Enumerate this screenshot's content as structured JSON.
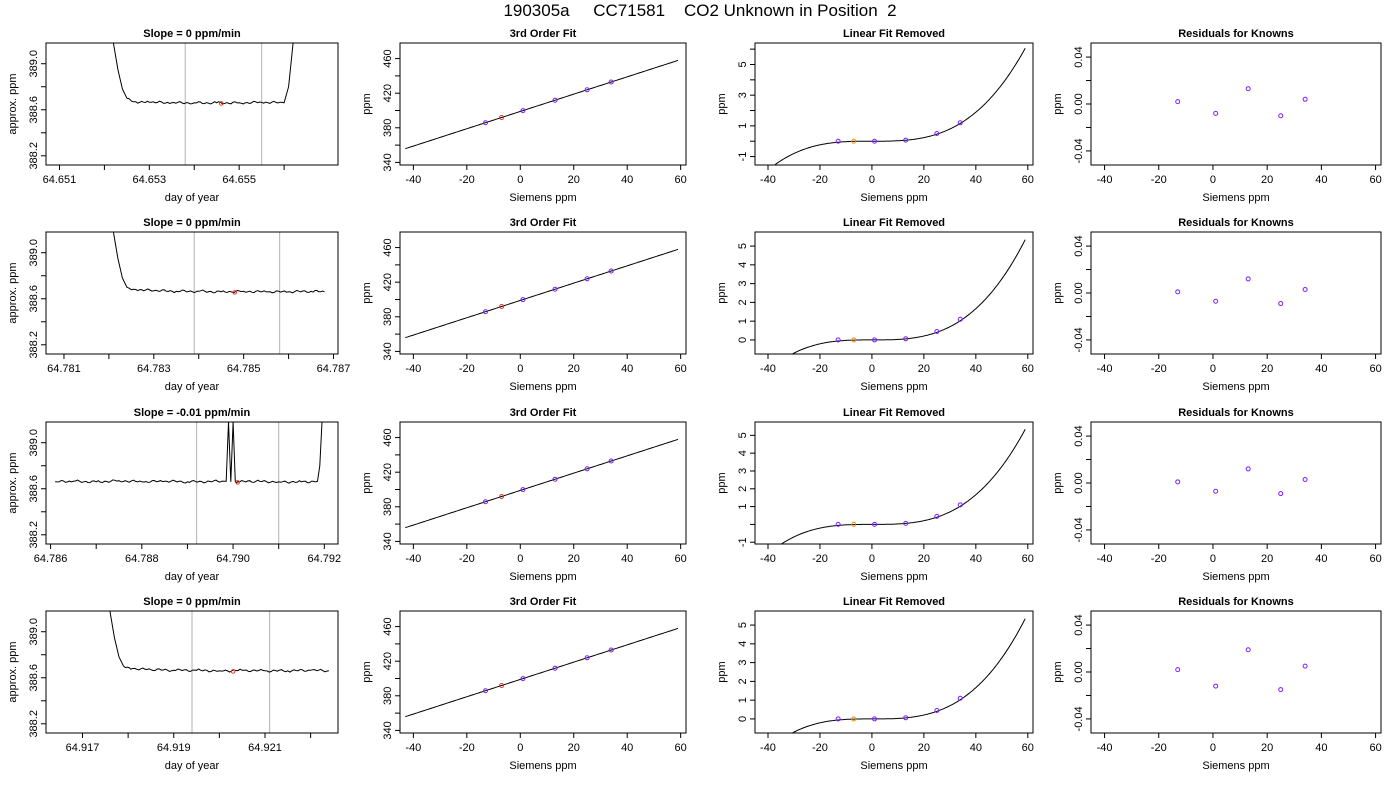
{
  "page": {
    "title": "190305a     CC71581    CO2 Unknown in Position  2"
  },
  "chart_data": [
    {
      "row": 1,
      "type": "line",
      "title": "Slope =  0  ppm/min",
      "xlabel": "day of year",
      "ylabel": "approx. ppm",
      "xlim": [
        64.6507,
        64.6572
      ],
      "ylim": [
        388.12,
        389.18
      ],
      "xticks": [
        64.651,
        64.653,
        64.655
      ],
      "xticks_minor": [
        64.652,
        64.654,
        64.656
      ],
      "yticks": [
        388.2,
        388.6,
        389.0
      ],
      "yticks_minor": [
        388.4,
        388.8
      ],
      "vlines": [
        64.6538,
        64.6555
      ],
      "marker": {
        "x": 64.6546,
        "y": 388.655
      },
      "series": [
        {
          "x": [
            64.6522,
            64.6523,
            64.6524,
            64.6525,
            64.6527,
            64.653,
            64.6535,
            64.654,
            64.6545,
            64.655,
            64.6555,
            64.656,
            64.6561,
            64.6562
          ],
          "y": [
            389.18,
            388.95,
            388.78,
            388.7,
            388.67,
            388.665,
            388.66,
            388.66,
            388.66,
            388.66,
            388.665,
            388.66,
            388.8,
            389.18
          ]
        }
      ]
    },
    {
      "row": 2,
      "type": "line",
      "title": "Slope =  0  ppm/min",
      "xlabel": "day of year",
      "ylabel": "approx. ppm",
      "xlim": [
        64.7806,
        64.7871
      ],
      "ylim": [
        388.12,
        389.18
      ],
      "xticks": [
        64.781,
        64.783,
        64.785,
        64.787
      ],
      "xticks_minor": [
        64.782,
        64.784,
        64.786
      ],
      "yticks": [
        388.2,
        388.6,
        389.0
      ],
      "yticks_minor": [
        388.4,
        388.8
      ],
      "vlines": [
        64.7839,
        64.7858
      ],
      "marker": {
        "x": 64.7848,
        "y": 388.655
      },
      "series": [
        {
          "x": [
            64.7821,
            64.7822,
            64.7823,
            64.7824,
            64.7826,
            64.783,
            64.7835,
            64.784,
            64.7845,
            64.785,
            64.7855,
            64.786,
            64.7865,
            64.7868
          ],
          "y": [
            389.18,
            388.95,
            388.78,
            388.7,
            388.68,
            388.67,
            388.665,
            388.665,
            388.66,
            388.665,
            388.66,
            388.66,
            388.665,
            388.66
          ]
        }
      ]
    },
    {
      "row": 3,
      "type": "line",
      "title": "Slope =  -0.01  ppm/min",
      "xlabel": "day of year",
      "ylabel": "approx. ppm",
      "xlim": [
        64.7859,
        64.7923
      ],
      "ylim": [
        388.12,
        389.18
      ],
      "xticks": [
        64.786,
        64.788,
        64.79,
        64.792
      ],
      "xticks_minor": [
        64.787,
        64.789,
        64.791
      ],
      "yticks": [
        388.2,
        388.6,
        389.0
      ],
      "yticks_minor": [
        388.4,
        388.8
      ],
      "vlines": [
        64.7892,
        64.791
      ],
      "marker": {
        "x": 64.7901,
        "y": 388.655
      },
      "series": [
        {
          "x": [
            64.7861,
            64.7865,
            64.787,
            64.7875,
            64.788,
            64.7885,
            64.789,
            64.78985,
            64.7899,
            64.78995,
            64.79,
            64.79005,
            64.7901,
            64.7905,
            64.791,
            64.7915,
            64.79185,
            64.7919,
            64.79195
          ],
          "y": [
            388.66,
            388.665,
            388.66,
            388.67,
            388.66,
            388.665,
            388.66,
            388.665,
            389.18,
            388.66,
            389.18,
            388.66,
            388.66,
            388.665,
            388.66,
            388.66,
            388.665,
            388.8,
            389.18
          ]
        }
      ]
    },
    {
      "row": 4,
      "type": "line",
      "title": "Slope =  0  ppm/min",
      "xlabel": "day of year",
      "ylabel": "approx. ppm",
      "xlim": [
        64.9162,
        64.9226
      ],
      "ylim": [
        388.12,
        389.18
      ],
      "xticks": [
        64.917,
        64.919,
        64.921
      ],
      "xticks_minor": [
        64.918,
        64.92,
        64.922
      ],
      "yticks": [
        388.2,
        388.6,
        389.0
      ],
      "yticks_minor": [
        388.4,
        388.8
      ],
      "vlines": [
        64.9194,
        64.9211
      ],
      "marker": {
        "x": 64.9203,
        "y": 388.655
      },
      "series": [
        {
          "x": [
            64.9176,
            64.9177,
            64.9178,
            64.9179,
            64.9181,
            64.9185,
            64.919,
            64.9195,
            64.92,
            64.9205,
            64.921,
            64.9215,
            64.922,
            64.9224
          ],
          "y": [
            389.18,
            388.95,
            388.78,
            388.7,
            388.68,
            388.67,
            388.665,
            388.665,
            388.66,
            388.665,
            388.66,
            388.66,
            388.665,
            388.66
          ]
        }
      ]
    },
    {
      "row": 1,
      "type": "scatter",
      "title": "3rd Order Fit",
      "xlabel": "Siemens ppm",
      "ylabel": "ppm",
      "xlim": [
        -45,
        62
      ],
      "ylim": [
        337,
        478
      ],
      "xticks": [
        -40,
        -20,
        0,
        20,
        40,
        60
      ],
      "yticks": [
        340,
        380,
        420,
        460
      ],
      "yticks_minor": [
        360,
        400,
        440
      ],
      "curve": {
        "type": "cubic",
        "coef": [
          398.9,
          1.0,
          0.0,
          0.0
        ],
        "xrange": [
          -43,
          59
        ]
      },
      "knowns": {
        "x": [
          -13,
          1,
          13,
          25,
          34
        ],
        "y": [
          385.9,
          399.9,
          411.9,
          423.9,
          432.9
        ]
      },
      "unknown": {
        "x": -7,
        "y": 391.9
      }
    },
    {
      "row": 2,
      "type": "scatter",
      "title": "3rd Order Fit",
      "xlabel": "Siemens ppm",
      "ylabel": "ppm",
      "xlim": [
        -45,
        62
      ],
      "ylim": [
        337,
        478
      ],
      "xticks": [
        -40,
        -20,
        0,
        20,
        40,
        60
      ],
      "yticks": [
        340,
        380,
        420,
        460
      ],
      "yticks_minor": [
        360,
        400,
        440
      ],
      "curve": {
        "type": "cubic",
        "coef": [
          398.9,
          1.0,
          0.0,
          0.0
        ],
        "xrange": [
          -43,
          59
        ]
      },
      "knowns": {
        "x": [
          -13,
          1,
          13,
          25,
          34
        ],
        "y": [
          385.9,
          399.9,
          411.9,
          423.9,
          432.9
        ]
      },
      "unknown": {
        "x": -7,
        "y": 391.9
      }
    },
    {
      "row": 3,
      "type": "scatter",
      "title": "3rd Order Fit",
      "xlabel": "Siemens ppm",
      "ylabel": "ppm",
      "xlim": [
        -45,
        62
      ],
      "ylim": [
        337,
        478
      ],
      "xticks": [
        -40,
        -20,
        0,
        20,
        40,
        60
      ],
      "yticks": [
        340,
        380,
        420,
        460
      ],
      "yticks_minor": [
        360,
        400,
        440
      ],
      "curve": {
        "type": "cubic",
        "coef": [
          398.9,
          1.0,
          0.0,
          0.0
        ],
        "xrange": [
          -43,
          59
        ]
      },
      "knowns": {
        "x": [
          -13,
          1,
          13,
          25,
          34
        ],
        "y": [
          385.9,
          399.9,
          411.9,
          423.9,
          432.9
        ]
      },
      "unknown": {
        "x": -7,
        "y": 391.9
      }
    },
    {
      "row": 4,
      "type": "scatter",
      "title": "3rd Order Fit",
      "xlabel": "Siemens ppm",
      "ylabel": "ppm",
      "xlim": [
        -45,
        62
      ],
      "ylim": [
        337,
        478
      ],
      "xticks": [
        -40,
        -20,
        0,
        20,
        40,
        60
      ],
      "yticks": [
        340,
        380,
        420,
        460
      ],
      "yticks_minor": [
        360,
        400,
        440
      ],
      "curve": {
        "type": "cubic",
        "coef": [
          398.9,
          1.0,
          0.0,
          0.0
        ],
        "xrange": [
          -43,
          59
        ]
      },
      "knowns": {
        "x": [
          -13,
          1,
          13,
          25,
          34
        ],
        "y": [
          385.9,
          399.9,
          411.9,
          423.9,
          432.9
        ]
      },
      "unknown": {
        "x": -7,
        "y": 391.9
      }
    },
    {
      "row": 1,
      "type": "scatter",
      "title": "Linear Fit Removed",
      "xlabel": "Siemens ppm",
      "ylabel": "ppm",
      "xlim": [
        -45,
        62
      ],
      "ylim": [
        -1.55,
        6.4
      ],
      "xticks": [
        -40,
        -20,
        0,
        20,
        40,
        60
      ],
      "yticks": [
        -1,
        1,
        3,
        5
      ],
      "yticks_minor": [
        0,
        2,
        4,
        6
      ],
      "curve": {
        "type": "cubic",
        "coef": [
          0.0,
          0.0,
          0.0,
          2.95e-05
        ],
        "xrange": [
          -43,
          59
        ]
      },
      "knowns": {
        "x": [
          -13,
          1,
          13,
          25,
          34
        ],
        "y": [
          0.0,
          0.0,
          0.07,
          0.5,
          1.2
        ]
      },
      "unknown": {
        "x": -7,
        "y": 0.0
      }
    },
    {
      "row": 2,
      "type": "scatter",
      "title": "Linear Fit Removed",
      "xlabel": "Siemens ppm",
      "ylabel": "ppm",
      "xlim": [
        -45,
        62
      ],
      "ylim": [
        -0.75,
        5.75
      ],
      "xticks": [
        -40,
        -20,
        0,
        20,
        40,
        60
      ],
      "yticks": [
        0,
        1,
        2,
        3,
        4,
        5
      ],
      "curve": {
        "type": "cubic",
        "coef": [
          0.0,
          0.0,
          0.0,
          2.6e-05
        ],
        "xrange": [
          -43,
          59
        ]
      },
      "knowns": {
        "x": [
          -13,
          1,
          13,
          25,
          34
        ],
        "y": [
          0.0,
          0.0,
          0.06,
          0.45,
          1.1
        ]
      },
      "unknown": {
        "x": -7,
        "y": 0.0
      }
    },
    {
      "row": 3,
      "type": "scatter",
      "title": "Linear Fit Removed",
      "xlabel": "Siemens ppm",
      "ylabel": "ppm",
      "xlim": [
        -45,
        62
      ],
      "ylim": [
        -1.1,
        5.75
      ],
      "xticks": [
        -40,
        -20,
        0,
        20,
        40,
        60
      ],
      "yticks": [
        -1,
        1,
        2,
        3,
        4,
        5
      ],
      "yticks_minor": [
        0
      ],
      "curve": {
        "type": "cubic",
        "coef": [
          0.0,
          0.0,
          0.0,
          2.6e-05
        ],
        "xrange": [
          -43,
          59
        ]
      },
      "knowns": {
        "x": [
          -13,
          1,
          13,
          25,
          34
        ],
        "y": [
          0.0,
          0.0,
          0.06,
          0.45,
          1.1
        ]
      },
      "unknown": {
        "x": -7,
        "y": 0.0
      }
    },
    {
      "row": 4,
      "type": "scatter",
      "title": "Linear Fit Removed",
      "xlabel": "Siemens ppm",
      "ylabel": "ppm",
      "xlim": [
        -45,
        62
      ],
      "ylim": [
        -0.75,
        5.75
      ],
      "xticks": [
        -40,
        -20,
        0,
        20,
        40,
        60
      ],
      "yticks": [
        0,
        1,
        2,
        3,
        4,
        5
      ],
      "curve": {
        "type": "cubic",
        "coef": [
          0.0,
          0.0,
          0.0,
          2.6e-05
        ],
        "xrange": [
          -43,
          59
        ]
      },
      "knowns": {
        "x": [
          -13,
          1,
          13,
          25,
          34
        ],
        "y": [
          0.0,
          0.0,
          0.06,
          0.45,
          1.1
        ]
      },
      "unknown": {
        "x": -7,
        "y": 0.0
      }
    },
    {
      "row": 1,
      "type": "scatter",
      "title": "Residuals for Knowns",
      "xlabel": "Siemens ppm",
      "ylabel": "ppm",
      "xlim": [
        -45,
        62
      ],
      "ylim": [
        -0.052,
        0.052
      ],
      "xticks": [
        -40,
        -20,
        0,
        20,
        40,
        60
      ],
      "yticks": [
        -0.04,
        0.0,
        0.04
      ],
      "yticks_minor": [
        -0.02,
        0.02
      ],
      "knowns": {
        "x": [
          -13,
          1,
          13,
          25,
          34
        ],
        "y": [
          0.002,
          -0.008,
          0.013,
          -0.01,
          0.004
        ]
      }
    },
    {
      "row": 2,
      "type": "scatter",
      "title": "Residuals for Knowns",
      "xlabel": "Siemens ppm",
      "ylabel": "ppm",
      "xlim": [
        -45,
        62
      ],
      "ylim": [
        -0.052,
        0.052
      ],
      "xticks": [
        -40,
        -20,
        0,
        20,
        40,
        60
      ],
      "yticks": [
        -0.04,
        0.0,
        0.04
      ],
      "yticks_minor": [
        -0.02,
        0.02
      ],
      "knowns": {
        "x": [
          -13,
          1,
          13,
          25,
          34
        ],
        "y": [
          0.001,
          -0.007,
          0.012,
          -0.009,
          0.003
        ]
      }
    },
    {
      "row": 3,
      "type": "scatter",
      "title": "Residuals for Knowns",
      "xlabel": "Siemens ppm",
      "ylabel": "ppm",
      "xlim": [
        -45,
        62
      ],
      "ylim": [
        -0.052,
        0.052
      ],
      "xticks": [
        -40,
        -20,
        0,
        20,
        40,
        60
      ],
      "yticks": [
        -0.04,
        0.0,
        0.04
      ],
      "yticks_minor": [
        -0.02,
        0.02
      ],
      "knowns": {
        "x": [
          -13,
          1,
          13,
          25,
          34
        ],
        "y": [
          0.001,
          -0.007,
          0.012,
          -0.009,
          0.003
        ]
      }
    },
    {
      "row": 4,
      "type": "scatter",
      "title": "Residuals for Knowns",
      "xlabel": "Siemens ppm",
      "ylabel": "ppm",
      "xlim": [
        -45,
        62
      ],
      "ylim": [
        -0.052,
        0.052
      ],
      "xticks": [
        -40,
        -20,
        0,
        20,
        40,
        60
      ],
      "yticks": [
        -0.04,
        0.0,
        0.04
      ],
      "yticks_minor": [
        -0.02,
        0.02
      ],
      "knowns": {
        "x": [
          -13,
          1,
          13,
          25,
          34
        ],
        "y": [
          0.002,
          -0.012,
          0.019,
          -0.015,
          0.005
        ]
      }
    }
  ],
  "colors": {
    "axes": "#000000",
    "trace": "#000000",
    "vline": "#bebebe",
    "known_point": "#7b1fff",
    "unknown_fit": "#e8332a",
    "unknown_linear": "#ff8c00"
  }
}
